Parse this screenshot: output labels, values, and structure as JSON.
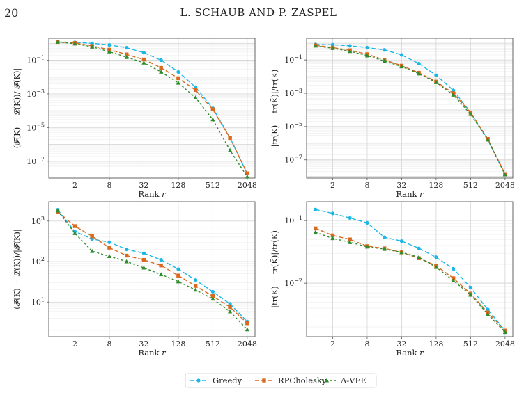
{
  "header": {
    "page_number": "20",
    "authors": "L. SCHAUB AND P. ZASPEL"
  },
  "colors": {
    "Greedy": "#1ab7e6",
    "RPCholesky": "#d9691e",
    "VFE": "#2e8b2e",
    "grid_major": "#d8d8d8",
    "grid_minor": "#eeeeee",
    "frame": "#555555"
  },
  "legend": {
    "placement": "bottom-center",
    "entries": [
      "Greedy",
      "RPCholesky",
      "Δ-VFE"
    ]
  },
  "chart_data": [
    {
      "type": "line",
      "ylabel": "(𝓕(K) − 𝓛(K̃))/|𝓕(K)|",
      "xlabel": "Rank r",
      "xscale": "log2",
      "yscale": "log10",
      "xlim": [
        0.7,
        2800
      ],
      "ylim": [
        1e-08,
        2
      ],
      "xticks": [
        2,
        8,
        32,
        128,
        512,
        2048
      ],
      "xtick_labels": [
        "2",
        "8",
        "32",
        "128",
        "512",
        "2048"
      ],
      "yticks": [
        1e-07,
        1e-05,
        0.001,
        0.1
      ],
      "ytick_labels": [
        "10^-7",
        "10^-5",
        "10^-3",
        "10^-1"
      ],
      "grid": true,
      "x": [
        1,
        2,
        4,
        8,
        16,
        32,
        64,
        128,
        256,
        512,
        1024,
        2048
      ],
      "series": [
        {
          "name": "Greedy",
          "values": [
            1.2,
            1.15,
            1.0,
            0.8,
            0.55,
            0.28,
            0.1,
            0.02,
            0.0025,
            0.00014,
            2.5e-06,
            1.8e-08
          ]
        },
        {
          "name": "RPCholesky",
          "values": [
            1.2,
            1.05,
            0.7,
            0.42,
            0.22,
            0.11,
            0.035,
            0.0085,
            0.0017,
            0.00012,
            2.4e-06,
            1.9e-08
          ]
        },
        {
          "name": "Δ-VFE",
          "values": [
            1.2,
            0.95,
            0.62,
            0.32,
            0.15,
            0.07,
            0.02,
            0.0045,
            0.0006,
            3e-05,
            4.5e-07,
            1.2e-08
          ]
        }
      ]
    },
    {
      "type": "line",
      "ylabel": "|tr(K) − tr(K̃)|/tr(K)",
      "xlabel": "Rank r",
      "xscale": "log2",
      "yscale": "log10",
      "xlim": [
        0.7,
        2800
      ],
      "ylim": [
        8e-09,
        2
      ],
      "xticks": [
        2,
        8,
        32,
        128,
        512,
        2048
      ],
      "xtick_labels": [
        "2",
        "8",
        "32",
        "128",
        "512",
        "2048"
      ],
      "yticks": [
        1e-07,
        1e-05,
        0.001,
        0.1
      ],
      "ytick_labels": [
        "10^-7",
        "10^-5",
        "10^-3",
        "10^-1"
      ],
      "grid": true,
      "x": [
        1,
        2,
        4,
        8,
        16,
        32,
        64,
        128,
        256,
        512,
        1024,
        2048
      ],
      "series": [
        {
          "name": "Greedy",
          "values": [
            0.85,
            0.82,
            0.7,
            0.55,
            0.4,
            0.2,
            0.06,
            0.012,
            0.0015,
            7e-05,
            1.6e-06,
            1.4e-08
          ]
        },
        {
          "name": "RPCholesky",
          "values": [
            0.75,
            0.55,
            0.38,
            0.22,
            0.1,
            0.045,
            0.017,
            0.005,
            0.001,
            7e-05,
            1.8e-06,
            1.4e-08
          ]
        },
        {
          "name": "Δ-VFE",
          "values": [
            0.7,
            0.5,
            0.33,
            0.18,
            0.085,
            0.04,
            0.015,
            0.0045,
            0.0008,
            5.5e-05,
            1.6e-06,
            1.3e-08
          ]
        }
      ]
    },
    {
      "type": "line",
      "ylabel": "(𝓕(K) − 𝓛(K̃))/|𝓕(K)|",
      "xlabel": "Rank r",
      "xscale": "log2",
      "yscale": "log10",
      "xlim": [
        0.7,
        2800
      ],
      "ylim": [
        1.4,
        3000
      ],
      "xticks": [
        2,
        8,
        32,
        128,
        512,
        2048
      ],
      "xtick_labels": [
        "2",
        "8",
        "32",
        "128",
        "512",
        "2048"
      ],
      "yticks": [
        10,
        100,
        1000
      ],
      "ytick_labels": [
        "10^1",
        "10^2",
        "10^3"
      ],
      "grid": true,
      "x": [
        1,
        2,
        4,
        8,
        16,
        32,
        64,
        128,
        256,
        512,
        1024,
        2048
      ],
      "series": [
        {
          "name": "Greedy",
          "values": [
            1900,
            550,
            360,
            300,
            200,
            160,
            110,
            65,
            35,
            18,
            9,
            3.3
          ]
        },
        {
          "name": "RPCholesky",
          "values": [
            1700,
            750,
            420,
            220,
            140,
            110,
            80,
            45,
            25,
            14,
            7.5,
            3.0
          ]
        },
        {
          "name": "Δ-VFE",
          "values": [
            1800,
            500,
            180,
            135,
            100,
            70,
            48,
            32,
            20,
            12,
            5.8,
            2.1
          ]
        }
      ]
    },
    {
      "type": "line",
      "ylabel": "|tr(K) − tr(K̃)|/tr(K)",
      "xlabel": "Rank r",
      "xscale": "log2",
      "yscale": "log10",
      "xlim": [
        0.7,
        2800
      ],
      "ylim": [
        0.0014,
        0.2
      ],
      "xticks": [
        2,
        8,
        32,
        128,
        512,
        2048
      ],
      "xtick_labels": [
        "2",
        "8",
        "32",
        "128",
        "512",
        "2048"
      ],
      "yticks": [
        0.01,
        0.1
      ],
      "ytick_labels": [
        "10^-2",
        "10^-1"
      ],
      "grid": true,
      "x": [
        1,
        2,
        4,
        8,
        16,
        32,
        64,
        128,
        256,
        512,
        1024,
        2048
      ],
      "series": [
        {
          "name": "Greedy",
          "values": [
            0.15,
            0.13,
            0.11,
            0.092,
            0.054,
            0.047,
            0.036,
            0.026,
            0.017,
            0.0085,
            0.0038,
            0.00175
          ]
        },
        {
          "name": "RPCholesky",
          "values": [
            0.075,
            0.058,
            0.05,
            0.039,
            0.036,
            0.031,
            0.025,
            0.019,
            0.012,
            0.0068,
            0.0034,
            0.00175
          ]
        },
        {
          "name": "Δ-VFE",
          "values": [
            0.065,
            0.052,
            0.045,
            0.038,
            0.035,
            0.031,
            0.026,
            0.018,
            0.011,
            0.0065,
            0.0032,
            0.00165
          ]
        }
      ]
    }
  ]
}
